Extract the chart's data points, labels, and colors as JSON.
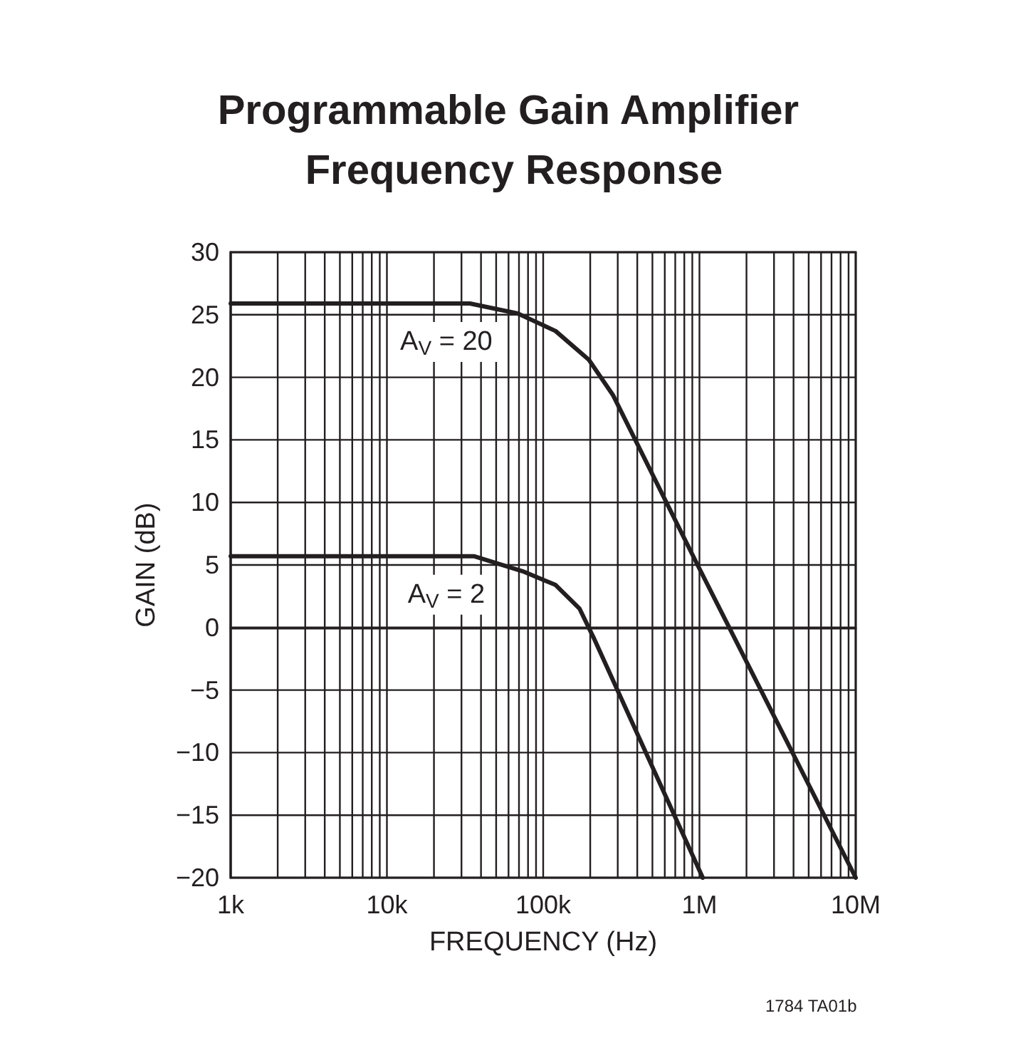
{
  "chart_data": {
    "type": "line",
    "title": "Programmable Gain Amplifier Frequency Response",
    "xlabel": "FREQUENCY (Hz)",
    "ylabel": "GAIN (dB)",
    "log": "x",
    "grid": true,
    "marker": "none",
    "line_style": "solid",
    "xlim": [
      1000,
      10000000
    ],
    "xticks": [
      {
        "value": 1000,
        "label": "1k"
      },
      {
        "value": 2000,
        "label": null
      },
      {
        "value": 3000,
        "label": null
      },
      {
        "value": 4000,
        "label": null
      },
      {
        "value": 5000,
        "label": null
      },
      {
        "value": 6000,
        "label": null
      },
      {
        "value": 7000,
        "label": null
      },
      {
        "value": 8000,
        "label": null
      },
      {
        "value": 9000,
        "label": null
      },
      {
        "value": 10000,
        "label": "10k"
      },
      {
        "value": 20000,
        "label": null
      },
      {
        "value": 30000,
        "label": null
      },
      {
        "value": 40000,
        "label": null
      },
      {
        "value": 50000,
        "label": null
      },
      {
        "value": 60000,
        "label": null
      },
      {
        "value": 70000,
        "label": null
      },
      {
        "value": 80000,
        "label": null
      },
      {
        "value": 90000,
        "label": null
      },
      {
        "value": 100000,
        "label": "100k"
      },
      {
        "value": 200000,
        "label": null
      },
      {
        "value": 300000,
        "label": null
      },
      {
        "value": 400000,
        "label": null
      },
      {
        "value": 500000,
        "label": null
      },
      {
        "value": 600000,
        "label": null
      },
      {
        "value": 700000,
        "label": null
      },
      {
        "value": 800000,
        "label": null
      },
      {
        "value": 900000,
        "label": null
      },
      {
        "value": 1000000,
        "label": "1M"
      },
      {
        "value": 2000000,
        "label": null
      },
      {
        "value": 3000000,
        "label": null
      },
      {
        "value": 4000000,
        "label": null
      },
      {
        "value": 5000000,
        "label": null
      },
      {
        "value": 6000000,
        "label": null
      },
      {
        "value": 7000000,
        "label": null
      },
      {
        "value": 8000000,
        "label": null
      },
      {
        "value": 9000000,
        "label": null
      },
      {
        "value": 10000000,
        "label": "10M"
      }
    ],
    "ylim": [
      -20,
      30
    ],
    "yticks": [
      {
        "value": -20,
        "label": "−20"
      },
      {
        "value": -15,
        "label": "−15"
      },
      {
        "value": -10,
        "label": "−10"
      },
      {
        "value": -5,
        "label": "−5"
      },
      0,
      5,
      10,
      15,
      20,
      25,
      30
    ],
    "series": [
      {
        "color": "#231f20",
        "x": [
          1000,
          34000,
          68700,
          120000,
          196000,
          279000,
          946000,
          10000000
        ],
        "values": [
          25.9,
          25.9,
          25.1,
          23.7,
          21.4,
          18.6,
          5.3,
          -20
        ]
      },
      {
        "color": "#231f20",
        "x": [
          1000,
          36000,
          73800,
          120000,
          171000,
          210000,
          1050000
        ],
        "values": [
          5.7,
          5.7,
          4.5,
          3.4,
          1.5,
          -0.8,
          -20
        ]
      }
    ],
    "annotations": [
      "A$_{V}$ = 20",
      "A$_{V}$ = 2",
      "1784 TA01b"
    ]
  }
}
